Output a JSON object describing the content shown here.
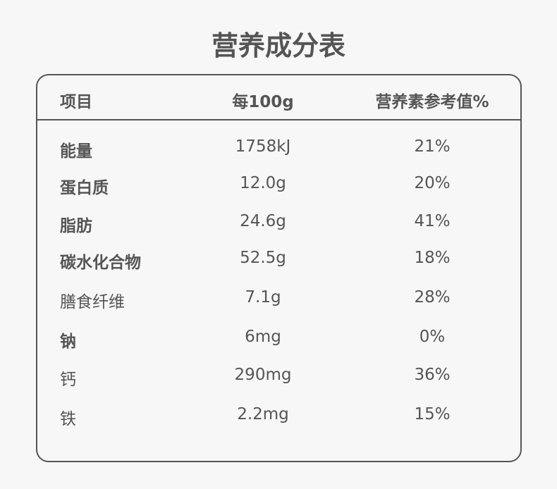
{
  "title": "营养成分表",
  "headers": [
    "项目",
    "每100g",
    "营养素参考值%"
  ],
  "rows": [
    {
      "name": "能量",
      "amount": "1758kJ",
      "nrv": "21%",
      "bold": true
    },
    {
      "name": "蛋白质",
      "amount": "12.0g",
      "nrv": "20%",
      "bold": true
    },
    {
      "name": "脂肪",
      "amount": "24.6g",
      "nrv": "41%",
      "bold": true
    },
    {
      "name": "碳水化合物",
      "amount": "52.5g",
      "nrv": "18%",
      "bold": true
    },
    {
      "name": "膳食纤维",
      "amount": "7.1g",
      "nrv": "28%",
      "bold": false
    },
    {
      "name": "钠",
      "amount": "6mg",
      "nrv": "0%",
      "bold": true
    },
    {
      "name": "钙",
      "amount": "290mg",
      "nrv": "36%",
      "bold": false
    },
    {
      "name": "铁",
      "amount": "2.2mg",
      "nrv": "15%",
      "bold": false
    }
  ]
}
